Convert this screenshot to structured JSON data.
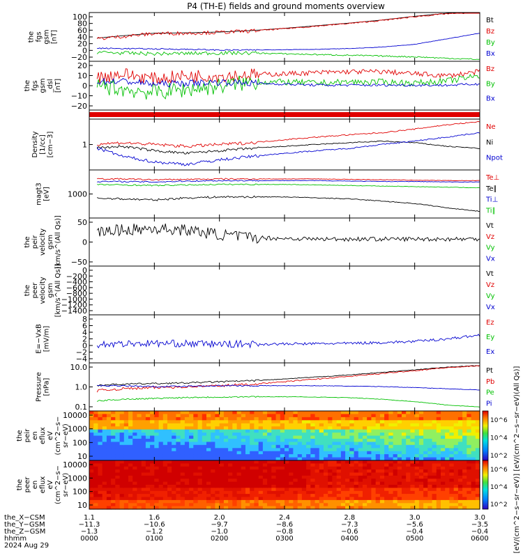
{
  "title": "P4 (TH-E) fields and ground moments overview",
  "panels": [
    {
      "ylabel": [
        "the",
        "fgs",
        "gsm",
        "[nT]"
      ],
      "ticks": [
        "100",
        "80",
        "60",
        "40",
        "20",
        "0",
        "−20"
      ],
      "legend": [
        [
          "Bt",
          "#000"
        ],
        [
          "Bz",
          "#e00000"
        ],
        [
          "By",
          "#00c000"
        ],
        [
          "Bx",
          "#0000d0"
        ]
      ]
    },
    {
      "ylabel": [
        "the",
        "fgs",
        "gsm",
        "_dsl",
        "[nT]"
      ],
      "ticks": [
        "20",
        "10",
        "0",
        "−10",
        "−20"
      ],
      "legend": [
        [
          "Bz",
          "#e00000"
        ],
        [
          "By",
          "#00c000"
        ],
        [
          "Bx",
          "#0000d0"
        ]
      ]
    },
    {
      "ylabel": [],
      "ticks": [],
      "legend": []
    },
    {
      "ylabel": [
        "Density",
        "[1/cc]",
        "[cm−3]"
      ],
      "ticks": [
        "1"
      ],
      "legend": [
        [
          "Ne",
          "#e00000"
        ],
        [
          "Ni",
          "#000"
        ],
        [
          "Npot",
          "#0000d0"
        ]
      ]
    },
    {
      "ylabel": [
        "magt3",
        "[eV]"
      ],
      "ticks": [
        "1000"
      ],
      "legend": [
        [
          "Te⊥",
          "#e00000"
        ],
        [
          "Te∥",
          "#000"
        ],
        [
          "Ti⊥",
          "#0000d0"
        ],
        [
          "Ti∥",
          "#00c000"
        ]
      ]
    },
    {
      "ylabel": [
        "the",
        "peir",
        "velocity",
        "gsm",
        "[km/s^(All Qs)]"
      ],
      "ticks": [
        "50",
        "0",
        "−50"
      ],
      "legend": [
        [
          "Vt",
          "#000"
        ],
        [
          "Vz",
          "#e00000"
        ],
        [
          "Vy",
          "#00c000"
        ],
        [
          "Vx",
          "#0000d0"
        ]
      ]
    },
    {
      "ylabel": [
        "the",
        "peer",
        "velocity",
        "gsm",
        "[km/s^(All Qs)]"
      ],
      "ticks": [
        "0",
        "−200",
        "−400",
        "−600",
        "−800",
        "−1000",
        "−1200",
        "−1400"
      ],
      "legend": [
        [
          "Vt",
          "#000"
        ],
        [
          "Vz",
          "#e00000"
        ],
        [
          "Vy",
          "#00c000"
        ],
        [
          "Vx",
          "#0000d0"
        ]
      ]
    },
    {
      "ylabel": [
        "E=−VxB",
        "[mV/m]"
      ],
      "ticks": [
        "8",
        "6",
        "4",
        "2",
        "0",
        "−2",
        "−4"
      ],
      "legend": [
        [
          "Ez",
          "#e00000"
        ],
        [
          "Ey",
          "#00c000"
        ],
        [
          "Ex",
          "#0000d0"
        ]
      ]
    },
    {
      "ylabel": [
        "Pressure",
        "[nPa]"
      ],
      "ticks": [
        "10.0",
        "1.0",
        "0.1"
      ],
      "legend": [
        [
          "Pt",
          "#000"
        ],
        [
          "Pb",
          "#e00000"
        ],
        [
          "Pe",
          "#00c000"
        ],
        [
          "Pi",
          "#0000d0"
        ]
      ]
    },
    {
      "ylabel": [
        "the",
        "peir",
        "en",
        "eflux",
        "eV",
        "(cm^2−s−",
        "sr−eV)"
      ],
      "ticks": [
        "10000",
        "1000",
        "100",
        "10"
      ],
      "legend": []
    },
    {
      "ylabel": [
        "the",
        "peer",
        "en",
        "eflux",
        "eV",
        "(cm^2−s−",
        "sr−eV)"
      ],
      "ticks": [
        "10000",
        "1000",
        "100",
        "10"
      ],
      "legend": []
    }
  ],
  "colorbar": {
    "ticks": [
      "10^6",
      "10^4",
      "10^2"
    ],
    "label": "[eV/(cm^2−s−sr−eV)] [eV/(cm^2−s−sr−eV)(All Qs)]"
  },
  "xaxis": {
    "rows": [
      {
        "label": "the_X−CSM",
        "values": [
          "1.1",
          "1.6",
          "2.0",
          "2.4",
          "2.8",
          "3.0",
          "3.0"
        ]
      },
      {
        "label": "the_Y−GSM",
        "values": [
          "−11.3",
          "−10.6",
          "−9.7",
          "−8.6",
          "−7.3",
          "−5.6",
          "−3.5"
        ]
      },
      {
        "label": "the_Z−GSM",
        "values": [
          "−1.3",
          "−1.2",
          "−1.0",
          "−0.8",
          "−0.6",
          "−0.4",
          "−0.4"
        ]
      },
      {
        "label": "hhmm",
        "values": [
          "0000",
          "0100",
          "0200",
          "0300",
          "0400",
          "0500",
          "0600"
        ]
      }
    ],
    "date": "2024 Aug 29"
  },
  "chart_data": {
    "type": "line",
    "title": "P4 (TH-E) fields and ground moments overview",
    "time_axis_hhmm": [
      "0000",
      "0100",
      "0200",
      "0300",
      "0400",
      "0500",
      "0600"
    ],
    "time_hours": [
      0,
      0.5,
      1,
      1.5,
      2,
      2.5,
      3,
      3.5,
      4,
      4.5,
      5,
      5.5,
      6
    ],
    "series": [
      {
        "panel": "fgs gsm",
        "name": "Bt",
        "values": [
          30,
          38,
          45,
          46,
          48,
          52,
          58,
          65,
          72,
          80,
          90,
          98,
          100
        ]
      },
      {
        "panel": "fgs gsm",
        "name": "Bz",
        "values": [
          28,
          36,
          44,
          45,
          47,
          51,
          57,
          64,
          71,
          79,
          89,
          97,
          100
        ]
      },
      {
        "panel": "fgs gsm",
        "name": "By",
        "values": [
          -5,
          -8,
          -10,
          -9,
          -8,
          -8,
          -10,
          -12,
          -14,
          -16,
          -18,
          -22,
          -25
        ]
      },
      {
        "panel": "fgs gsm",
        "name": "Bx",
        "values": [
          5,
          4,
          3,
          2,
          0,
          0,
          1,
          2,
          4,
          8,
          15,
          30,
          45
        ]
      },
      {
        "panel": "fgs gsm_dsl",
        "name": "Bz",
        "values": [
          5,
          10,
          5,
          8,
          8,
          9,
          10,
          11,
          12,
          12,
          10,
          8,
          12
        ]
      },
      {
        "panel": "fgs gsm_dsl",
        "name": "By",
        "values": [
          0,
          -5,
          -8,
          -5,
          -2,
          2,
          2,
          1,
          2,
          2,
          1,
          3,
          8
        ]
      },
      {
        "panel": "fgs gsm_dsl",
        "name": "Bx",
        "values": [
          2,
          3,
          0,
          1,
          2,
          1,
          0,
          -1,
          -1,
          -1,
          -1,
          -1,
          0
        ]
      },
      {
        "panel": "Density",
        "name": "Ne",
        "values": [
          1.1,
          1.2,
          1.1,
          1.0,
          1.1,
          1.2,
          1.4,
          1.6,
          1.8,
          2.0,
          2.4,
          3.0,
          3.5
        ]
      },
      {
        "panel": "Density",
        "name": "Ni",
        "values": [
          0.9,
          1.0,
          0.8,
          0.7,
          0.8,
          0.9,
          1.0,
          1.1,
          1.2,
          1.3,
          1.2,
          1.0,
          0.9
        ]
      },
      {
        "panel": "Density",
        "name": "Npot",
        "values": [
          1.0,
          0.6,
          0.45,
          0.4,
          0.5,
          0.6,
          0.7,
          0.8,
          0.9,
          1.1,
          1.3,
          1.6,
          2.0
        ]
      },
      {
        "panel": "magt3",
        "name": "Te⊥",
        "values": [
          2600,
          2600,
          2500,
          2550,
          2600,
          2600,
          2600,
          2600,
          2550,
          2500,
          2450,
          2400,
          2400
        ]
      },
      {
        "panel": "magt3",
        "name": "Te∥",
        "values": [
          1050,
          1000,
          950,
          1050,
          1100,
          1100,
          1100,
          1050,
          1000,
          900,
          800,
          650,
          550
        ]
      },
      {
        "panel": "magt3",
        "name": "Ti⊥",
        "values": [
          2300,
          2300,
          2250,
          2350,
          2400,
          2400,
          2400,
          2400,
          2350,
          2300,
          2300,
          2250,
          2250
        ]
      },
      {
        "panel": "magt3",
        "name": "Ti∥",
        "values": [
          2000,
          1950,
          1900,
          1950,
          2000,
          2000,
          2000,
          1950,
          1900,
          1850,
          1800,
          1750,
          1700
        ]
      },
      {
        "panel": "peir velocity",
        "name": "Vt",
        "values": [
          30,
          40,
          45,
          40,
          25,
          15,
          12,
          10,
          10,
          10,
          10,
          10,
          10
        ]
      },
      {
        "panel": "E=−VxB",
        "name": "Ex",
        "values": [
          0,
          0.2,
          0.3,
          0.2,
          0.1,
          0.1,
          0.1,
          0.2,
          0.3,
          0.5,
          0.8,
          1.5,
          2.5
        ]
      },
      {
        "panel": "Pressure",
        "name": "Pt",
        "values": [
          1.0,
          1.2,
          1.3,
          1.4,
          1.6,
          1.8,
          2.2,
          2.8,
          3.6,
          4.8,
          6.5,
          9,
          11
        ]
      },
      {
        "panel": "Pressure",
        "name": "Pb",
        "values": [
          0.5,
          0.7,
          0.8,
          0.9,
          1.0,
          1.2,
          1.6,
          2.2,
          3.0,
          4.2,
          6,
          8.5,
          10.5
        ]
      },
      {
        "panel": "Pressure",
        "name": "Pe",
        "values": [
          0.15,
          0.2,
          0.22,
          0.25,
          0.26,
          0.27,
          0.27,
          0.26,
          0.24,
          0.2,
          0.15,
          0.1,
          0.08
        ]
      },
      {
        "panel": "Pressure",
        "name": "Pi",
        "values": [
          1.0,
          1.0,
          0.9,
          0.95,
          1.0,
          1.0,
          1.0,
          1.0,
          0.95,
          0.9,
          0.8,
          0.7,
          0.6
        ]
      }
    ]
  }
}
